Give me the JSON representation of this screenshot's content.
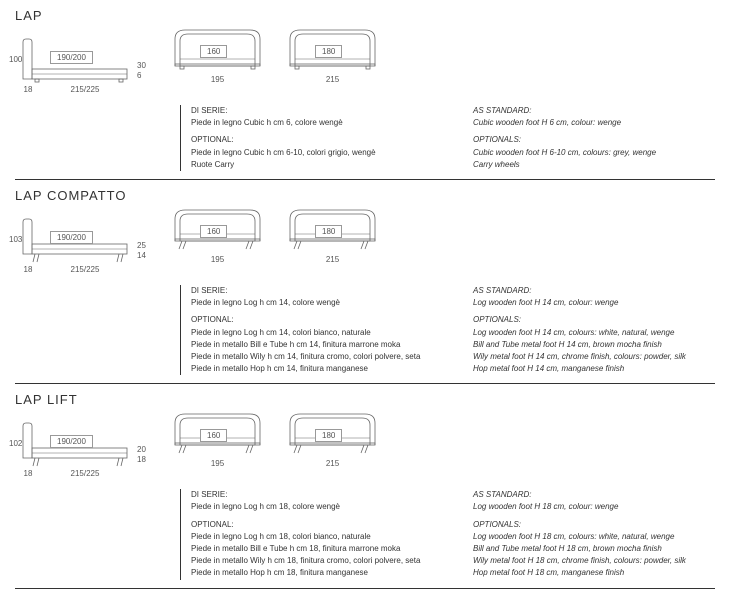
{
  "sections": [
    {
      "title": "LAP",
      "side": {
        "height": "100",
        "h1": "30",
        "h2": "6",
        "hb": "18",
        "len": "215/225",
        "inner": "190/200"
      },
      "fronts": [
        {
          "inner": "160",
          "below": "195"
        },
        {
          "inner": "180",
          "below": "215"
        }
      ],
      "foot_style": "cubic",
      "left": {
        "serie_head": "DI SERIE:",
        "serie": [
          "Piede in legno Cubic h cm 6, colore wengè"
        ],
        "opt_head": "OPTIONAL:",
        "opt": [
          "Piede in legno Cubic h cm 6-10, colori grigio, wengè",
          "Ruote Carry"
        ]
      },
      "right": {
        "std_head": "AS STANDARD:",
        "std": [
          "Cubic wooden foot H 6 cm, colour: wenge"
        ],
        "opt_head": "OPTIONALS:",
        "opt": [
          "Cubic wooden foot H 6-10 cm, colours: grey, wenge",
          "Carry wheels"
        ]
      }
    },
    {
      "title": "LAP COMPATTO",
      "side": {
        "height": "103",
        "h1": "25",
        "h2": "14",
        "hb": "18",
        "len": "215/225",
        "inner": "190/200"
      },
      "fronts": [
        {
          "inner": "160",
          "below": "195"
        },
        {
          "inner": "180",
          "below": "215"
        }
      ],
      "foot_style": "log",
      "left": {
        "serie_head": "DI SERIE:",
        "serie": [
          "Piede in legno Log h cm 14, colore wengè"
        ],
        "opt_head": "OPTIONAL:",
        "opt": [
          "Piede in legno Log h cm 14, colori bianco, naturale",
          "Piede in metallo Bill e Tube h cm 14, finitura marrone moka",
          "Piede in metallo Wily h cm 14, finitura cromo, colori polvere, seta",
          "Piede in metallo Hop h cm 14, finitura manganese"
        ]
      },
      "right": {
        "std_head": "AS STANDARD:",
        "std": [
          "Log wooden foot H 14 cm, colour: wenge"
        ],
        "opt_head": "OPTIONALS:",
        "opt": [
          "Log wooden foot H 14 cm, colours: white, natural, wenge",
          "Bill and Tube metal foot H 14 cm, brown mocha finish",
          "Wily metal foot H 14 cm, chrome finish, colours: powder, silk",
          "Hop metal foot H 14 cm, manganese finish"
        ]
      }
    },
    {
      "title": "LAP LIFT",
      "side": {
        "height": "102",
        "h1": "20",
        "h2": "18",
        "hb": "18",
        "len": "215/225",
        "inner": "190/200"
      },
      "fronts": [
        {
          "inner": "160",
          "below": "195"
        },
        {
          "inner": "180",
          "below": "215"
        }
      ],
      "foot_style": "log",
      "left": {
        "serie_head": "DI SERIE:",
        "serie": [
          "Piede in legno Log h cm 18, colore wengè"
        ],
        "opt_head": "OPTIONAL:",
        "opt": [
          "Piede in legno Log h cm 18, colori bianco, naturale",
          "Piede in metallo Bill e Tube h cm 18, finitura marrone moka",
          "Piede in metallo Wily h cm 18, finitura cromo, colori polvere, seta",
          "Piede in metallo Hop h cm 18, finitura manganese"
        ]
      },
      "right": {
        "std_head": "AS STANDARD:",
        "std": [
          "Log wooden foot H 18 cm, colour: wenge"
        ],
        "opt_head": "OPTIONALS:",
        "opt": [
          "Log wooden foot H 18 cm, colours: white, natural, wenge",
          "Bill and Tube metal foot H 18 cm, brown mocha finish",
          "Wily metal foot H 18 cm, chrome finish, colours: powder, silk",
          "Hop metal foot H 18 cm, manganese finish"
        ]
      }
    }
  ],
  "colors": {
    "line": "#666",
    "text": "#444"
  }
}
